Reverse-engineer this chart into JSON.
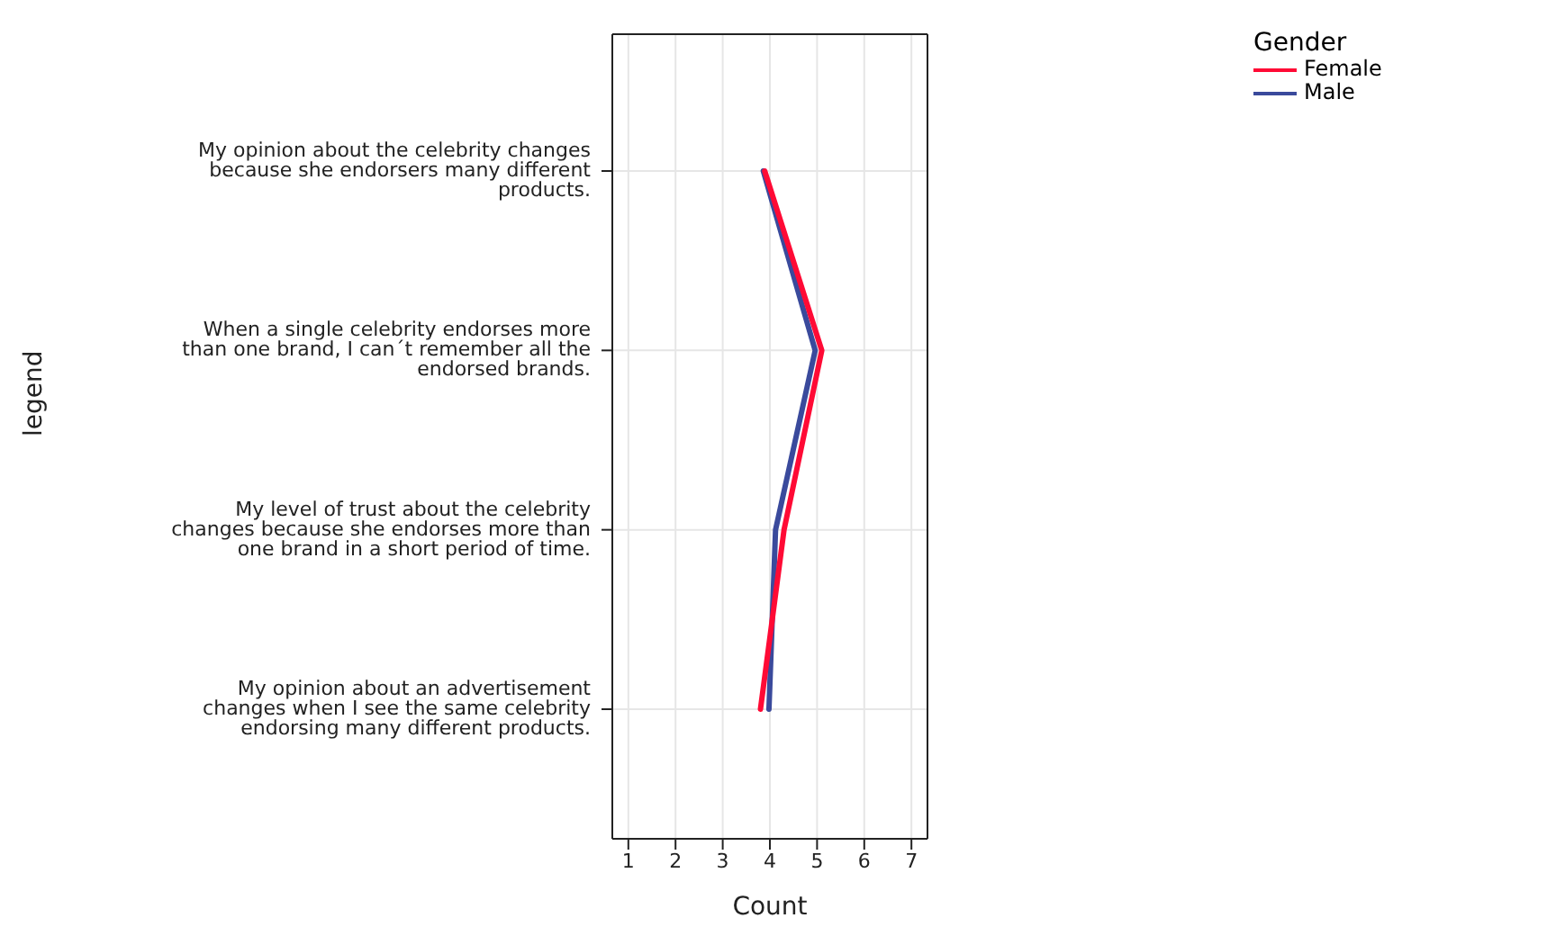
{
  "chart_data": {
    "type": "line",
    "xlabel": "Count",
    "ylabel": "legend",
    "legend_title": "Gender",
    "legend": "top right",
    "grid": true,
    "marker": "none",
    "line_style": "solid",
    "orientation": "horizontal",
    "categories": [
      "My opinion about the celebrity changes because she endorsers many different products.",
      "When a single celebrity endorses more than one brand, I can´t remember all the endorsed brands.",
      "My level of trust about the celebrity changes because she endorses more than one brand in a short period of time.",
      "My opinion about an advertisement changes when I see the same celebrity endorsing many different products."
    ],
    "xlim": [
      0.66,
      7.34
    ],
    "xticks": [
      1,
      2,
      3,
      4,
      5,
      6,
      7
    ],
    "series": [
      {
        "name": "Male",
        "color": "#3a4a9c",
        "values": [
          3.86,
          4.96,
          4.12,
          3.98
        ]
      },
      {
        "name": "Female",
        "color": "#ff0a35",
        "values": [
          3.89,
          5.1,
          4.3,
          3.8
        ]
      }
    ]
  }
}
